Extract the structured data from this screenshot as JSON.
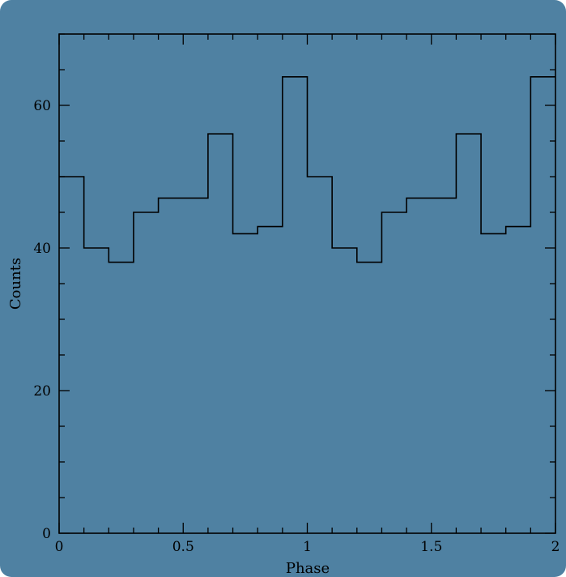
{
  "chart_data": {
    "type": "line",
    "style": "step-histogram",
    "title": "",
    "xlabel": "Phase",
    "ylabel": "Counts",
    "xlim": [
      0,
      2
    ],
    "ylim": [
      0,
      70
    ],
    "bin_width": 0.1,
    "x": [
      0.0,
      0.1,
      0.2,
      0.3,
      0.4,
      0.5,
      0.6,
      0.7,
      0.8,
      0.9,
      1.0,
      1.1,
      1.2,
      1.3,
      1.4,
      1.5,
      1.6,
      1.7,
      1.8,
      1.9
    ],
    "series": [
      {
        "values": [
          50,
          40,
          38,
          45,
          47,
          47,
          56,
          42,
          43,
          64,
          50,
          40,
          38,
          45,
          47,
          47,
          56,
          42,
          43,
          64
        ]
      }
    ],
    "x_ticks": [
      {
        "value": 0,
        "label": "0"
      },
      {
        "value": 0.5,
        "label": "0.5"
      },
      {
        "value": 1,
        "label": "1"
      },
      {
        "value": 1.5,
        "label": "1.5"
      },
      {
        "value": 2,
        "label": "2"
      }
    ],
    "y_ticks": [
      {
        "value": 0,
        "label": "0"
      },
      {
        "value": 20,
        "label": "20"
      },
      {
        "value": 40,
        "label": "40"
      },
      {
        "value": 60,
        "label": "60"
      }
    ],
    "x_minor_step": 0.1,
    "y_minor_step": 5,
    "grid": false,
    "legend": "none",
    "colors": {
      "background": "#4f81a2",
      "line": "#000000"
    }
  }
}
